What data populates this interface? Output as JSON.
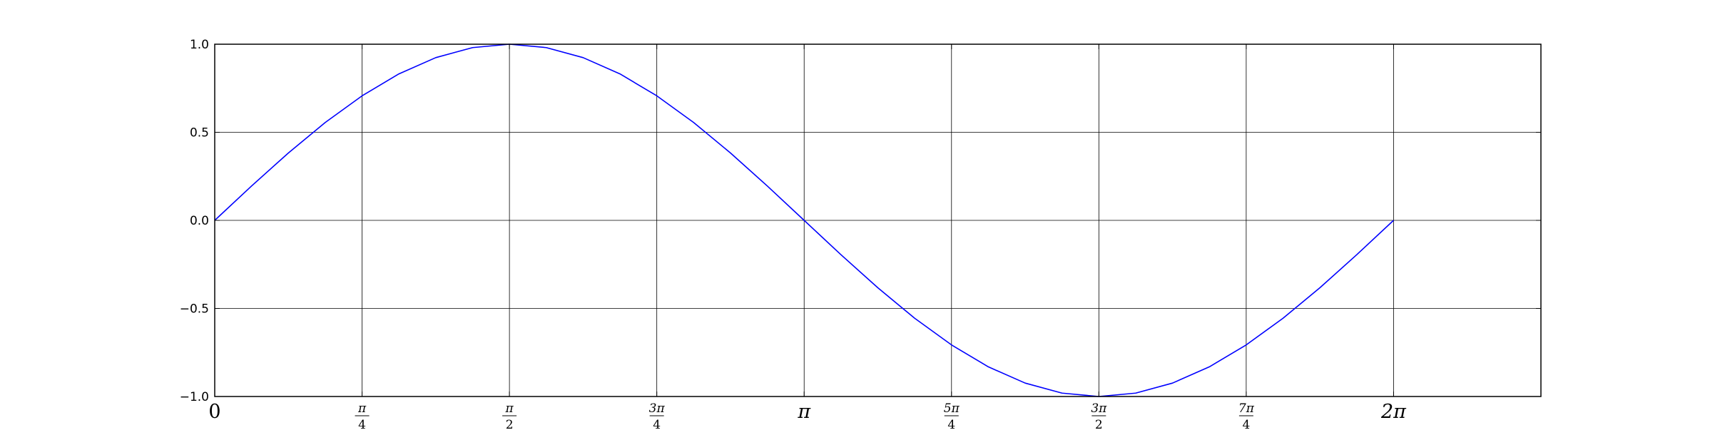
{
  "chart_data": {
    "type": "line",
    "title": "",
    "xlabel": "",
    "ylabel": "",
    "xlim": [
      0,
      7.0686
    ],
    "ylim": [
      -1.0,
      1.0
    ],
    "grid": true,
    "line_color": "#0000ff",
    "grid_color": "#000000",
    "y_ticks": [
      {
        "value": -1.0,
        "label": "−1.0"
      },
      {
        "value": -0.5,
        "label": "−0.5"
      },
      {
        "value": 0.0,
        "label": "0.0"
      },
      {
        "value": 0.5,
        "label": "0.5"
      },
      {
        "value": 1.0,
        "label": "1.0"
      }
    ],
    "x_ticks": [
      {
        "value": 0.0,
        "label": "0"
      },
      {
        "value": 0.7854,
        "num": "π",
        "den": "4"
      },
      {
        "value": 1.5708,
        "num": "π",
        "den": "2"
      },
      {
        "value": 2.3562,
        "num": "3π",
        "den": "4"
      },
      {
        "value": 3.1416,
        "label": "π"
      },
      {
        "value": 3.927,
        "num": "5π",
        "den": "4"
      },
      {
        "value": 4.7124,
        "num": "3π",
        "den": "2"
      },
      {
        "value": 5.4978,
        "num": "7π",
        "den": "4"
      },
      {
        "value": 6.2832,
        "label": "2π"
      }
    ],
    "series": [
      {
        "x": [
          0.0,
          0.1963,
          0.3927,
          0.589,
          0.7854,
          0.9817,
          1.1781,
          1.3744,
          1.5708,
          1.7671,
          1.9635,
          2.1598,
          2.3562,
          2.5525,
          2.7489,
          2.9452,
          3.1416,
          3.3379,
          3.5343,
          3.7306,
          3.927,
          4.1233,
          4.3197,
          4.516,
          4.7124,
          4.9087,
          5.1051,
          5.3014,
          5.4978,
          5.6941,
          5.8905,
          6.0868,
          6.2832
        ],
        "y": [
          0.0,
          0.1951,
          0.3827,
          0.5556,
          0.7071,
          0.8315,
          0.9239,
          0.9808,
          1.0,
          0.9808,
          0.9239,
          0.8315,
          0.7071,
          0.5556,
          0.3827,
          0.1951,
          0.0,
          -0.1951,
          -0.3827,
          -0.5556,
          -0.7071,
          -0.8315,
          -0.9239,
          -0.9808,
          -1.0,
          -0.9808,
          -0.9239,
          -0.8315,
          -0.7071,
          -0.5556,
          -0.3827,
          -0.1951,
          0.0
        ]
      }
    ]
  }
}
